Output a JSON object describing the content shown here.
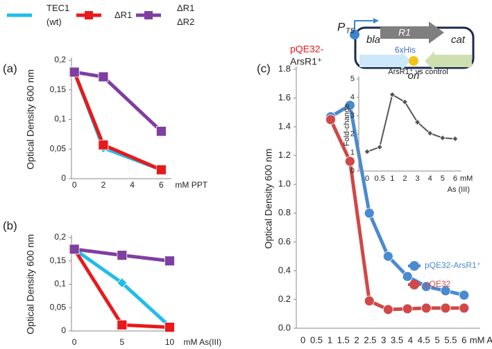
{
  "chart_data": [
    {
      "type": "line",
      "panel_label": "(a)",
      "ylabel": "Optical Density 600 nm",
      "xlabel": "mM PPT",
      "x": [
        0,
        2,
        6
      ],
      "xlim": [
        -0.2,
        6.7
      ],
      "xticks": [
        0,
        2,
        4,
        6
      ],
      "ylim": [
        0,
        0.2
      ],
      "yticks": [
        0,
        {
          "value": 0.05,
          "label": "0,05"
        },
        {
          "value": 0.1,
          "label": "0,1"
        },
        {
          "value": 0.15,
          "label": "0,15"
        },
        {
          "value": 0.2,
          "label": "0,2"
        }
      ],
      "grid": false,
      "series": [
        {
          "name": "TEC1 (wt)",
          "color": "#1fbdea",
          "marker": "diamond",
          "values": [
            0.18,
            0.052,
            0.015
          ]
        },
        {
          "name": "ΔR1",
          "color": "#e8191b",
          "marker": "square",
          "values": [
            0.18,
            0.057,
            0.015
          ]
        },
        {
          "name": "ΔR1 ΔR2",
          "color": "#7e3fa0",
          "marker": "square",
          "values": [
            0.18,
            0.172,
            0.08
          ]
        }
      ]
    },
    {
      "type": "line",
      "panel_label": "(b)",
      "ylabel": "Optical Density 600 nm",
      "xlabel": "mM As(III)",
      "x": [
        0,
        5,
        10
      ],
      "xlim": [
        -0.3,
        10.4
      ],
      "xticks": [
        0,
        5,
        10
      ],
      "ylim": [
        0,
        0.2
      ],
      "yticks": [
        0,
        {
          "value": 0.05,
          "label": "0,05"
        },
        {
          "value": 0.1,
          "label": "0,1"
        },
        {
          "value": 0.15,
          "label": "0,15"
        },
        {
          "value": 0.2,
          "label": "0,2"
        }
      ],
      "grid": false,
      "series": [
        {
          "color": "#1fbdea",
          "marker": "diamond",
          "values": [
            0.175,
            0.103,
            0.01
          ]
        },
        {
          "color": "#e8191b",
          "marker": "square",
          "values": [
            0.175,
            0.013,
            0.008
          ]
        },
        {
          "color": "#7e3fa0",
          "marker": "square",
          "values": [
            0.175,
            0.162,
            0.15
          ]
        }
      ]
    },
    {
      "type": "line",
      "panel_label": "(c)",
      "ylabel": "Optical Density 600 nm",
      "xlabel": "mM As (III)",
      "x": [
        1.03,
        1.75,
        2.47,
        3.17,
        3.89,
        4.59,
        5.31,
        6.0
      ],
      "xlim": [
        -0.25,
        6.6
      ],
      "xticks": [
        0,
        0.5,
        1,
        1.5,
        2,
        2.5,
        3,
        3.5,
        4,
        4.5,
        5,
        5.5,
        6
      ],
      "ylim": [
        0,
        1.8
      ],
      "yticks": [
        {
          "value": 0,
          "label": "0.0"
        },
        0.2,
        0.4,
        0.6,
        0.8,
        {
          "value": 1,
          "label": "1.0"
        },
        1.2,
        1.4,
        1.6,
        1.8
      ],
      "grid": false,
      "series": [
        {
          "name": "pQE32-ArsR1⁺",
          "color": "#4a8ad0",
          "marker": "circle",
          "values": [
            1.47,
            1.55,
            0.8,
            0.5,
            0.36,
            0.29,
            0.26,
            0.23
          ]
        },
        {
          "name": "pQE32",
          "color": "#d04848",
          "marker": "circle",
          "values": [
            1.45,
            1.16,
            0.19,
            0.13,
            0.135,
            0.14,
            0.14,
            0.14
          ]
        }
      ]
    },
    {
      "type": "category-line",
      "title": "ArsR1⁺ vs control",
      "ylabel": "Fold-change",
      "xlabel": "mM",
      "xlabel2": "As (III)",
      "categories": [
        "0",
        "0.5",
        "1",
        "2",
        "3",
        "4",
        "5",
        "6"
      ],
      "ylim": [
        0,
        5
      ],
      "yticks": [
        0,
        1,
        2,
        3,
        4,
        5
      ],
      "grid": false,
      "series": [
        {
          "color": "#555555",
          "marker": "diamond",
          "values": [
            1.05,
            1.3,
            4.15,
            3.75,
            2.65,
            2.05,
            1.8,
            1.75
          ]
        }
      ]
    }
  ],
  "diagram": {
    "plasmid_prefix": "pQE32-",
    "plasmid_suffix": "ArsR1⁺",
    "promoter": "P",
    "promoter_sub": "T5",
    "gene": "R1",
    "tag": "6xHis",
    "left_gene": "bla",
    "right_gene": "cat",
    "origin": "ori"
  }
}
